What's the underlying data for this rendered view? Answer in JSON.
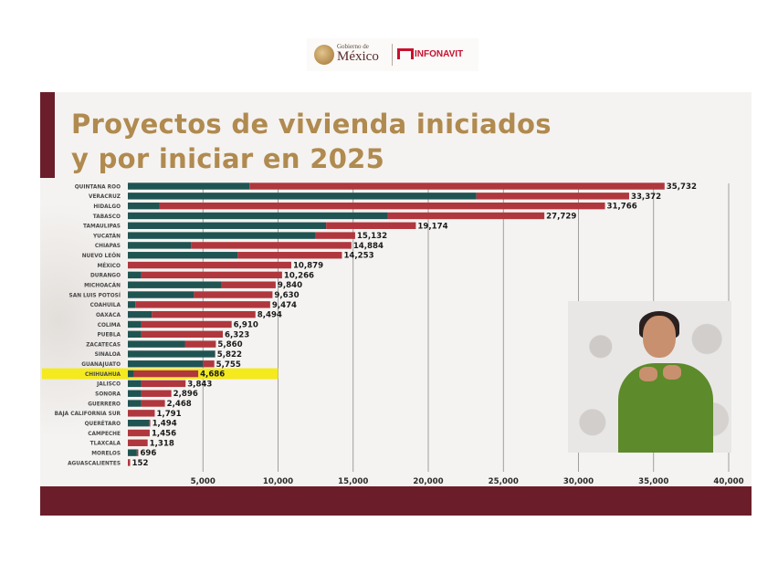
{
  "header": {
    "gob_small": "Gobierno de",
    "gob_big": "México",
    "infonavit": "INFONAVIT"
  },
  "slide": {
    "title_line1": "Proyectos de vivienda iniciados",
    "title_line2": "y por iniciar en 2025"
  },
  "interpreter": {
    "icon": "sign-language-interpreter"
  },
  "colors": {
    "iniciados": "#1f5452",
    "por_iniciar": "#b0373d",
    "highlight": "#f4ea1e",
    "grid": "#8a8a8a",
    "title": "#b08a4f",
    "brand": "#6b1e2a"
  },
  "chart_data": {
    "type": "bar",
    "orientation": "horizontal",
    "stacked": true,
    "title": "Proyectos de vivienda iniciados y por iniciar en 2025",
    "xlim": [
      0,
      40000
    ],
    "xticks": [
      5000,
      10000,
      15000,
      20000,
      25000,
      30000,
      35000,
      40000
    ],
    "xtick_labels": [
      "5,000",
      "10,000",
      "15,000",
      "20,000",
      "25,000",
      "30,000",
      "35,000",
      "40,000"
    ],
    "highlighted_category": "CHIHUAHUA",
    "categories": [
      "QUINTANA ROO",
      "VERACRUZ",
      "HIDALGO",
      "TABASCO",
      "TAMAULIPAS",
      "YUCATÁN",
      "CHIAPAS",
      "NUEVO LEÓN",
      "MÉXICO",
      "DURANGO",
      "MICHOACÁN",
      "SAN LUIS POTOSÍ",
      "COAHUILA",
      "OAXACA",
      "COLIMA",
      "PUEBLA",
      "ZACATECAS",
      "SINALOA",
      "GUANAJUATO",
      "CHIHUAHUA",
      "JALISCO",
      "SONORA",
      "GUERRERO",
      "BAJA CALIFORNIA SUR",
      "QUERÉTARO",
      "CAMPECHE",
      "TLAXCALA",
      "MORELOS",
      "AGUASCALIENTES"
    ],
    "totals": [
      35732,
      33372,
      31766,
      27729,
      19174,
      15132,
      14884,
      14253,
      10879,
      10266,
      9840,
      9630,
      9474,
      8494,
      6910,
      6323,
      5860,
      5822,
      5755,
      4686,
      3843,
      2896,
      2468,
      1791,
      1494,
      1456,
      1318,
      696,
      152
    ],
    "total_labels": [
      "35,732",
      "33,372",
      "31,766",
      "27,729",
      "19,174",
      "15,132",
      "14,884",
      "14,253",
      "10,879",
      "10,266",
      "9,840",
      "9,630",
      "9,474",
      "8,494",
      "6,910",
      "6,323",
      "5,860",
      "5,822",
      "5,755",
      "4,686",
      "3,843",
      "2,896",
      "2,468",
      "1,791",
      "1,494",
      "1,456",
      "1,318",
      "696",
      "152"
    ],
    "series": [
      {
        "name": "iniciados",
        "values": [
          8100,
          23200,
          2100,
          17300,
          13200,
          12500,
          4200,
          7300,
          0,
          900,
          6200,
          4400,
          500,
          1600,
          900,
          900,
          3800,
          5800,
          5000,
          400,
          900,
          900,
          900,
          0,
          1400,
          0,
          0,
          600,
          0
        ]
      },
      {
        "name": "por_iniciar",
        "values": [
          27632,
          10172,
          29666,
          10429,
          5974,
          2632,
          10684,
          6953,
          10879,
          9366,
          3640,
          5230,
          8974,
          6894,
          6010,
          5423,
          2060,
          22,
          755,
          4286,
          2943,
          1996,
          1568,
          1791,
          94,
          1456,
          1318,
          96,
          152
        ]
      }
    ]
  }
}
